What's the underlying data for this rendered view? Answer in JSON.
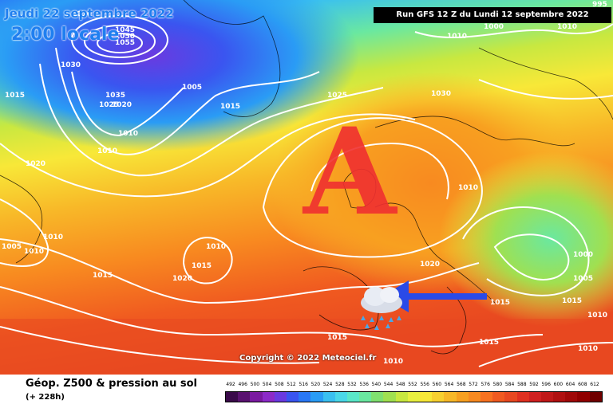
{
  "header": {
    "date_line": "Jeudi 22 septembre 2022",
    "time_line": "2:00 locale",
    "run_info": "Run GFS 12 Z du Lundi 12 septembre 2022"
  },
  "copyright": "Copyright © 2022 Meteociel.fr",
  "footer": {
    "title": "Géop. Z500 & pression au sol",
    "lead_time": "(+ 228h)"
  },
  "legend": {
    "labels": [
      "492",
      "496",
      "500",
      "504",
      "508",
      "512",
      "516",
      "520",
      "524",
      "528",
      "532",
      "536",
      "540",
      "544",
      "548",
      "552",
      "556",
      "560",
      "564",
      "568",
      "572",
      "576",
      "580",
      "584",
      "588",
      "592",
      "596",
      "600",
      "604",
      "608",
      "612"
    ],
    "colors": [
      "#3a0a4a",
      "#5a1270",
      "#7a1aa0",
      "#8c2ac8",
      "#6a3ae0",
      "#3a55f0",
      "#2a78f5",
      "#2a9cf5",
      "#3ac0f0",
      "#4ad8e8",
      "#5ae8c8",
      "#6ae8a0",
      "#80e070",
      "#a0e050",
      "#c8e840",
      "#e8f040",
      "#f8e838",
      "#f8d030",
      "#f8b828",
      "#f8a020",
      "#f88a20",
      "#f87220",
      "#f05a20",
      "#e84820",
      "#e03020",
      "#d02020",
      "#c01818",
      "#b01010",
      "#a00808",
      "#900000",
      "#700000"
    ]
  },
  "map": {
    "high_marker": "A",
    "colors": {
      "high_marker": "#f03030",
      "isobar": "#ffffff",
      "arrow": "#2a4ae8"
    },
    "icon": "rain-cloud-icon",
    "pressure_labels": [
      "1045",
      "1050",
      "1055",
      "1030",
      "1035",
      "1025",
      "1020",
      "1005",
      "1010",
      "1015",
      "1010",
      "1020",
      "1025",
      "1030",
      "1015",
      "1000",
      "1010",
      "1010",
      "1015",
      "1020",
      "1015",
      "1010",
      "1020",
      "1010",
      "1015",
      "1000",
      "1005",
      "1015",
      "1010",
      "1010",
      "1015",
      "1010",
      "1015",
      "1010",
      "1005",
      "1010",
      "1010",
      "995",
      "1025",
      "1020"
    ],
    "pressure_label_pos": [
      [
        144,
        40
      ],
      [
        144,
        48
      ],
      [
        144,
        56
      ],
      [
        76,
        84
      ],
      [
        132,
        122
      ],
      [
        128,
        134
      ],
      [
        140,
        134
      ],
      [
        228,
        112
      ],
      [
        148,
        170
      ],
      [
        6,
        122
      ],
      [
        122,
        192
      ],
      [
        32,
        208
      ],
      [
        410,
        122
      ],
      [
        540,
        120
      ],
      [
        276,
        136
      ],
      [
        606,
        36
      ],
      [
        560,
        48
      ],
      [
        698,
        36
      ],
      [
        116,
        348
      ],
      [
        216,
        352
      ],
      [
        240,
        336
      ],
      [
        258,
        312
      ],
      [
        528,
        334
      ],
      [
        574,
        238
      ],
      [
        614,
        382
      ],
      [
        718,
        322
      ],
      [
        718,
        352
      ],
      [
        706,
        380
      ],
      [
        736,
        398
      ],
      [
        54,
        300
      ],
      [
        410,
        426
      ],
      [
        482,
        456
      ],
      [
        600,
        432
      ],
      [
        726,
        440
      ],
      [
        2,
        312
      ],
      [
        30,
        318
      ],
      [
        90,
        20
      ],
      [
        742,
        8
      ],
      [
        0,
        8
      ],
      [
        0,
        8
      ]
    ]
  }
}
